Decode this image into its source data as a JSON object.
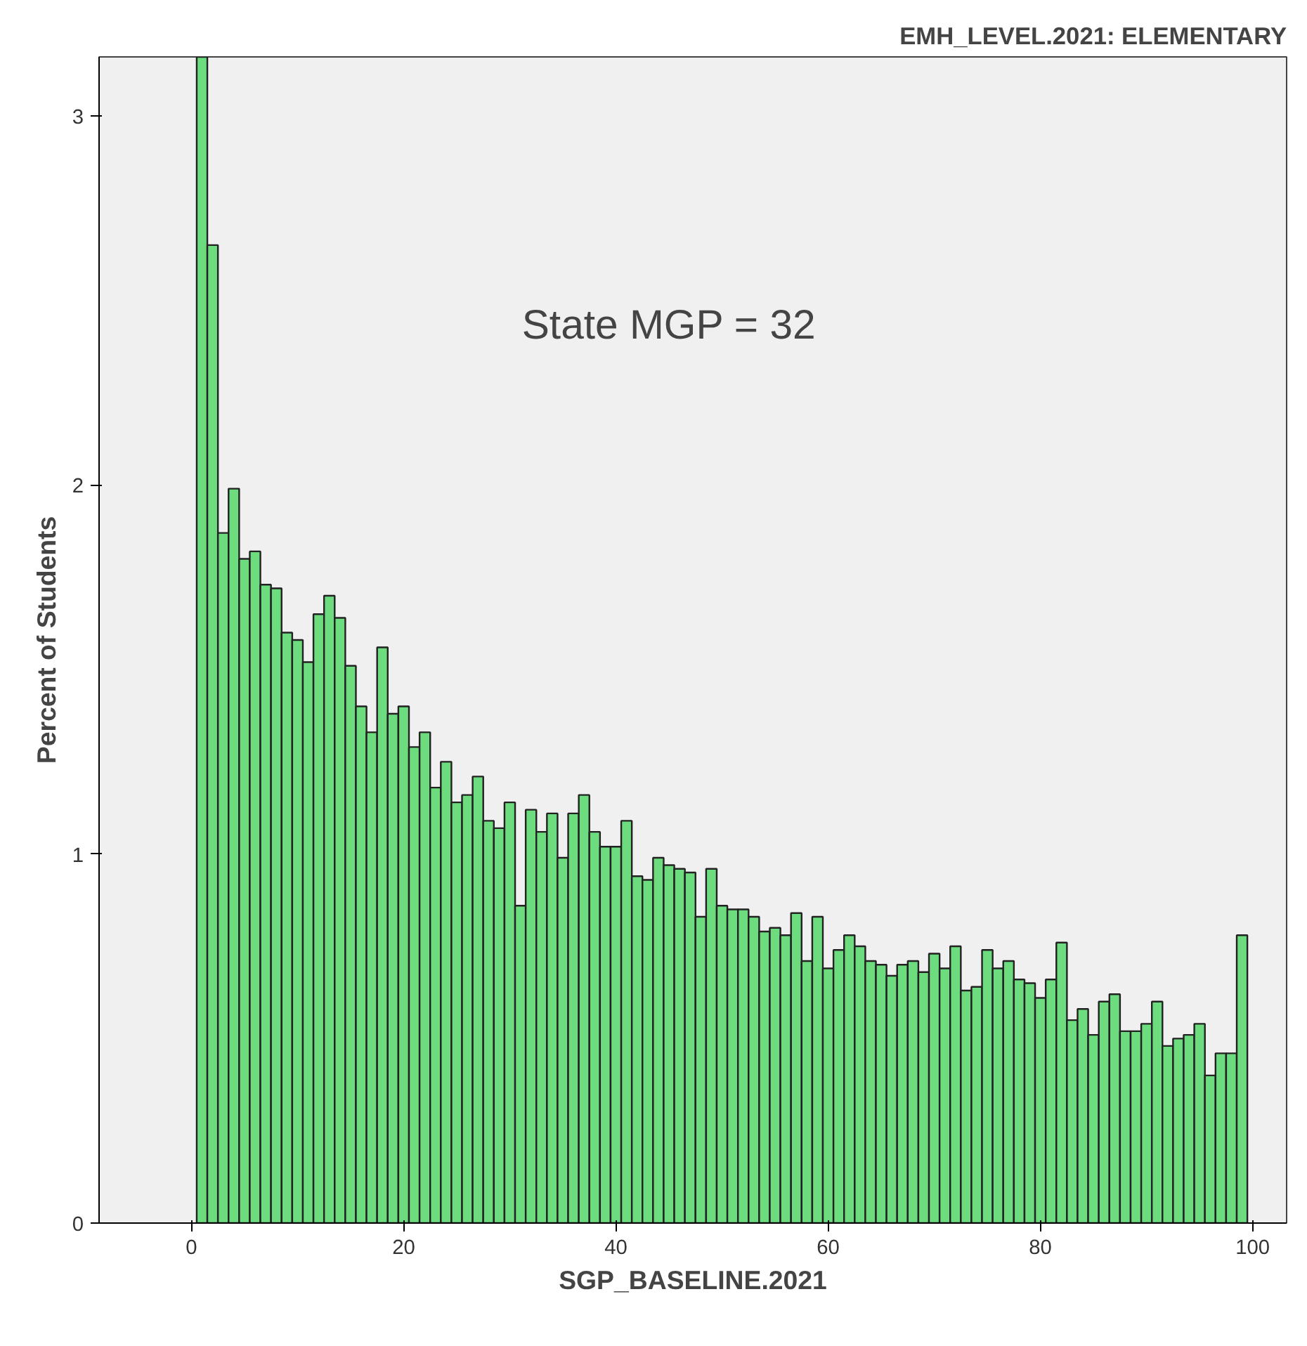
{
  "chart_data": {
    "type": "histogram",
    "title": "EMH_LEVEL.2021: ELEMENTARY",
    "xlabel": "SGP_BASELINE.2021",
    "ylabel": "Percent of Students",
    "annotations": [
      "State MGP = 32"
    ],
    "bins": [
      0.5,
      1.5,
      2.5,
      3.5,
      4.5,
      5.5,
      6.5,
      7.5,
      8.5,
      9.5,
      10.5,
      11.5,
      12.5,
      13.5,
      14.5,
      15.5,
      16.5,
      17.5,
      18.5,
      19.5,
      20.5,
      21.5,
      22.5,
      23.5,
      24.5,
      25.5,
      26.5,
      27.5,
      28.5,
      29.5,
      30.5,
      31.5,
      32.5,
      33.5,
      34.5,
      35.5,
      36.5,
      37.5,
      38.5,
      39.5,
      40.5,
      41.5,
      42.5,
      43.5,
      44.5,
      45.5,
      46.5,
      47.5,
      48.5,
      49.5,
      50.5,
      51.5,
      52.5,
      53.5,
      54.5,
      55.5,
      56.5,
      57.5,
      58.5,
      59.5,
      60.5,
      61.5,
      62.5,
      63.5,
      64.5,
      65.5,
      66.5,
      67.5,
      68.5,
      69.5,
      70.5,
      71.5,
      72.5,
      73.5,
      74.5,
      75.5,
      76.5,
      77.5,
      78.5,
      79.5,
      80.5,
      81.5,
      82.5,
      83.5,
      84.5,
      85.5,
      86.5,
      87.5,
      88.5,
      89.5,
      90.5,
      91.5,
      92.5,
      93.5,
      94.5,
      95.5,
      96.5,
      97.5,
      98.5,
      99.5
    ],
    "values": [
      3.16,
      2.65,
      1.87,
      1.99,
      1.8,
      1.82,
      1.73,
      1.72,
      1.6,
      1.58,
      1.52,
      1.65,
      1.7,
      1.64,
      1.51,
      1.4,
      1.33,
      1.56,
      1.38,
      1.4,
      1.29,
      1.33,
      1.18,
      1.25,
      1.14,
      1.16,
      1.21,
      1.09,
      1.07,
      1.14,
      0.86,
      1.12,
      1.06,
      1.11,
      0.99,
      1.11,
      1.16,
      1.06,
      1.02,
      1.02,
      1.09,
      0.94,
      0.93,
      0.99,
      0.97,
      0.96,
      0.95,
      0.83,
      0.96,
      0.86,
      0.85,
      0.85,
      0.83,
      0.79,
      0.8,
      0.78,
      0.84,
      0.71,
      0.83,
      0.69,
      0.74,
      0.78,
      0.75,
      0.71,
      0.7,
      0.67,
      0.7,
      0.71,
      0.68,
      0.73,
      0.69,
      0.75,
      0.63,
      0.64,
      0.74,
      0.69,
      0.71,
      0.66,
      0.65,
      0.61,
      0.66,
      0.76,
      0.55,
      0.58,
      0.51,
      0.6,
      0.62,
      0.52,
      0.52,
      0.54,
      0.6,
      0.48,
      0.5,
      0.51,
      0.54,
      0.4,
      0.46,
      0.46,
      0.78
    ],
    "color": "#6ddc7f",
    "xlim": [
      -8.7,
      103.2
    ],
    "ylim": [
      0,
      3.16
    ],
    "xticks": [
      0,
      20,
      40,
      60,
      80,
      100
    ],
    "yticks": [
      0,
      1,
      2,
      3
    ],
    "grid": false
  }
}
